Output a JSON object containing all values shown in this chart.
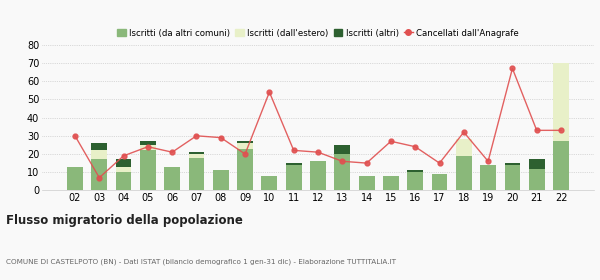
{
  "years": [
    "02",
    "03",
    "04",
    "05",
    "06",
    "07",
    "08",
    "09",
    "10",
    "11",
    "12",
    "13",
    "14",
    "15",
    "16",
    "17",
    "18",
    "19",
    "20",
    "21",
    "22"
  ],
  "iscritti_altri_comuni": [
    13,
    17,
    10,
    22,
    13,
    18,
    11,
    23,
    8,
    14,
    16,
    20,
    8,
    8,
    10,
    9,
    19,
    14,
    14,
    12,
    27
  ],
  "iscritti_estero": [
    0,
    5,
    3,
    3,
    0,
    2,
    0,
    3,
    0,
    0,
    0,
    0,
    0,
    0,
    0,
    0,
    9,
    0,
    0,
    0,
    43
  ],
  "iscritti_altri": [
    0,
    4,
    4,
    2,
    0,
    1,
    0,
    1,
    0,
    1,
    0,
    5,
    0,
    0,
    1,
    0,
    0,
    0,
    1,
    5,
    0
  ],
  "cancellati": [
    30,
    7,
    19,
    24,
    21,
    30,
    29,
    20,
    54,
    22,
    21,
    16,
    15,
    27,
    24,
    15,
    32,
    16,
    67,
    33,
    33
  ],
  "color_altri_comuni": "#8ab87a",
  "color_estero": "#e8f0c8",
  "color_altri": "#2d6030",
  "color_cancellati": "#e05050",
  "ylim": [
    0,
    80
  ],
  "yticks": [
    0,
    10,
    20,
    30,
    40,
    50,
    60,
    70,
    80
  ],
  "title": "Flusso migratorio della popolazione",
  "subtitle": "COMUNE DI CASTELPOTO (BN) - Dati ISTAT (bilancio demografico 1 gen-31 dic) - Elaborazione TUTTITALIA.IT",
  "legend_labels": [
    "Iscritti (da altri comuni)",
    "Iscritti (dall'estero)",
    "Iscritti (altri)",
    "Cancellati dall'Anagrafe"
  ],
  "bg_color": "#f9f9f9"
}
